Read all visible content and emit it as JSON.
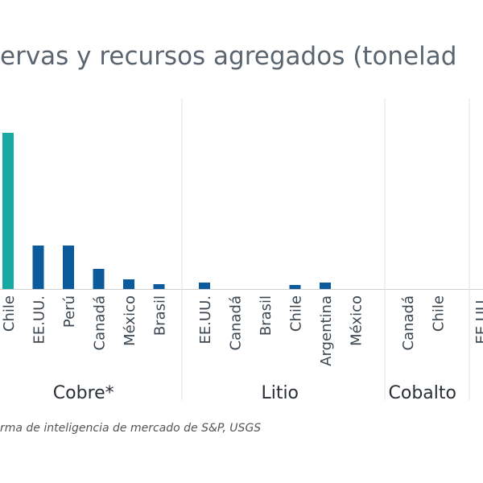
{
  "chart_data": {
    "type": "grouped-bar",
    "title": "ervas y recursos agregados (tonelad",
    "source": "rma de inteligencia de mercado de S&P, USGS",
    "ylim": [
      0,
      200
    ],
    "groups": [
      {
        "name": "Cobre*",
        "categories": [
          "Chile",
          "EE.UU.",
          "Perú",
          "Canadá",
          "México",
          "Brasil"
        ],
        "values": [
          194,
          54,
          54,
          25,
          12,
          6
        ],
        "colors": [
          "#17aaa3",
          "#0b5a9c",
          "#0b5a9c",
          "#0b5a9c",
          "#0b5a9c",
          "#0b5a9c"
        ]
      },
      {
        "name": "Litio",
        "categories": [
          "EE.UU.",
          "Canadá",
          "Brasil",
          "Chile",
          "Argentina",
          "México"
        ],
        "values": [
          8,
          0,
          0,
          5,
          8,
          0
        ],
        "colors": [
          "#0b5a9c",
          "#0b5a9c",
          "#0b5a9c",
          "#0b5a9c",
          "#0b5a9c",
          "#0b5a9c"
        ]
      },
      {
        "name": "Cobalto",
        "categories": [
          "Canadá",
          "Chile"
        ],
        "values": [
          0,
          0
        ],
        "colors": [
          "#0b5a9c",
          "#0b5a9c"
        ]
      },
      {
        "categories": [
          "EE.UU."
        ],
        "values": [
          null
        ],
        "colors": [
          "#0b5a9c"
        ]
      }
    ]
  }
}
